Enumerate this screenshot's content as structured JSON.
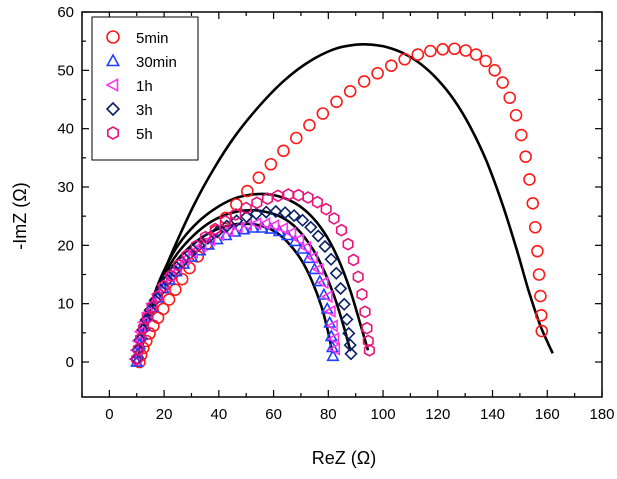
{
  "chart_data": {
    "type": "scatter",
    "title": "",
    "xlabel": "ReZ (Ω)",
    "ylabel": "-ImZ (Ω)",
    "xlim": [
      -10,
      180
    ],
    "ylim": [
      -6,
      60
    ],
    "x_ticks": [
      0,
      20,
      40,
      60,
      80,
      100,
      120,
      140,
      160,
      180
    ],
    "y_ticks": [
      0,
      10,
      20,
      30,
      40,
      50,
      60
    ],
    "grid": false,
    "legend_position": "top-left",
    "fit_color": "#000000",
    "series": [
      {
        "name": "5min",
        "marker": "circle",
        "color": "#ff1a1a",
        "x": [
          11.0,
          11.6,
          12.4,
          13.5,
          14.7,
          16.1,
          17.8,
          19.7,
          21.8,
          24.1,
          26.6,
          29.3,
          32.3,
          35.5,
          38.9,
          42.5,
          46.4,
          50.4,
          54.6,
          59.0,
          63.6,
          68.3,
          73.1,
          78.0,
          83.0,
          88.0,
          93.1,
          98.0,
          103.0,
          107.9,
          112.7,
          117.3,
          121.8,
          126.1,
          130.2,
          134.0,
          137.5,
          140.8,
          143.7,
          146.3,
          148.6,
          150.5,
          152.1,
          153.5,
          154.7,
          155.6,
          156.4,
          157.0,
          157.5,
          157.8,
          158.0
        ],
        "y": [
          0.0,
          1.2,
          2.4,
          3.6,
          4.9,
          6.2,
          7.6,
          9.1,
          10.7,
          12.4,
          14.2,
          16.1,
          18.1,
          20.2,
          22.4,
          24.7,
          27.0,
          29.3,
          31.6,
          33.9,
          36.2,
          38.4,
          40.6,
          42.6,
          44.6,
          46.4,
          48.1,
          49.5,
          50.8,
          51.9,
          52.7,
          53.3,
          53.6,
          53.7,
          53.4,
          52.7,
          51.6,
          50.0,
          47.9,
          45.3,
          42.3,
          38.9,
          35.2,
          31.3,
          27.2,
          23.1,
          19.0,
          15.0,
          11.3,
          8.0,
          5.3
        ]
      },
      {
        "name": "30min",
        "marker": "triangle",
        "color": "#1f3fff",
        "x": [
          10.0,
          10.4,
          11.0,
          11.8,
          12.9,
          14.2,
          15.8,
          17.6,
          19.7,
          22.0,
          24.5,
          27.2,
          30.1,
          33.1,
          36.2,
          39.4,
          42.6,
          45.9,
          49.2,
          52.5,
          55.8,
          59.0,
          62.1,
          65.1,
          67.9,
          70.5,
          72.9,
          75.0,
          76.9,
          78.4,
          79.6,
          80.5,
          81.1,
          81.5,
          81.7
        ],
        "y": [
          0.0,
          1.5,
          3.0,
          4.6,
          6.2,
          7.8,
          9.4,
          11.0,
          12.6,
          14.1,
          15.5,
          16.8,
          18.0,
          19.1,
          20.1,
          21.0,
          21.7,
          22.3,
          22.7,
          23.0,
          23.0,
          22.8,
          22.4,
          21.7,
          20.7,
          19.4,
          17.8,
          15.9,
          13.8,
          11.5,
          9.1,
          6.7,
          4.4,
          2.5,
          1.0
        ]
      },
      {
        "name": "1h",
        "marker": "triangle-left",
        "color": "#ff33ee",
        "x": [
          9.5,
          10.0,
          10.6,
          11.5,
          12.6,
          14.0,
          15.7,
          17.6,
          19.8,
          22.2,
          24.8,
          27.6,
          30.6,
          33.7,
          36.9,
          40.2,
          43.5,
          46.9,
          50.3,
          53.7,
          57.0,
          60.3,
          63.5,
          66.5,
          69.4,
          72.0,
          74.4,
          76.5,
          78.3,
          79.8,
          80.9,
          81.7,
          82.2,
          82.5
        ],
        "y": [
          0.5,
          2.0,
          3.6,
          5.2,
          6.8,
          8.4,
          10.0,
          11.6,
          13.2,
          14.8,
          16.2,
          17.6,
          18.8,
          19.9,
          20.9,
          21.8,
          22.5,
          23.1,
          23.5,
          23.7,
          23.7,
          23.4,
          22.9,
          22.1,
          21.0,
          19.6,
          17.9,
          15.9,
          13.6,
          11.2,
          8.7,
          6.2,
          4.0,
          2.2
        ]
      },
      {
        "name": "3h",
        "marker": "diamond",
        "color": "#0b1f66",
        "x": [
          10.0,
          10.5,
          11.2,
          12.2,
          13.4,
          14.9,
          16.7,
          18.8,
          21.1,
          23.7,
          26.5,
          29.5,
          32.7,
          36.0,
          39.4,
          42.9,
          46.5,
          50.1,
          53.7,
          57.3,
          60.8,
          64.2,
          67.5,
          70.6,
          73.6,
          76.3,
          78.8,
          81.0,
          82.9,
          84.5,
          85.8,
          86.8,
          87.5,
          88.0,
          88.3
        ],
        "y": [
          0.5,
          2.1,
          3.8,
          5.5,
          7.2,
          8.9,
          10.6,
          12.3,
          14.0,
          15.6,
          17.2,
          18.6,
          20.0,
          21.2,
          22.3,
          23.3,
          24.2,
          24.9,
          25.4,
          25.7,
          25.8,
          25.6,
          25.1,
          24.3,
          23.1,
          21.6,
          19.8,
          17.6,
          15.2,
          12.6,
          9.9,
          7.3,
          4.9,
          2.9,
          1.4
        ]
      },
      {
        "name": "5h",
        "marker": "hexagon",
        "color": "#e8147a",
        "x": [
          10.0,
          10.6,
          11.4,
          12.5,
          13.9,
          15.6,
          17.6,
          19.9,
          22.5,
          25.3,
          28.4,
          31.7,
          35.1,
          38.7,
          42.4,
          46.2,
          50.0,
          53.9,
          57.8,
          61.6,
          65.4,
          69.1,
          72.6,
          76.0,
          79.2,
          82.1,
          84.8,
          87.2,
          89.2,
          90.9,
          92.3,
          93.4,
          94.1,
          94.6,
          95.0
        ],
        "y": [
          0.5,
          2.2,
          4.0,
          5.8,
          7.6,
          9.4,
          11.2,
          13.0,
          14.8,
          16.6,
          18.3,
          19.9,
          21.4,
          22.8,
          24.1,
          25.3,
          26.4,
          27.3,
          28.0,
          28.5,
          28.7,
          28.6,
          28.2,
          27.4,
          26.2,
          24.6,
          22.6,
          20.2,
          17.5,
          14.6,
          11.6,
          8.6,
          5.8,
          3.6,
          2.0
        ]
      }
    ],
    "fits": [
      {
        "x": [
          11.0,
          13.0,
          16.0,
          20.0,
          25.0,
          31.0,
          38.0,
          46.0,
          55.0,
          64.0,
          73.0,
          82.0,
          90.0,
          96.0,
          102.0,
          108.0,
          114.0,
          120.0,
          126.0,
          132.0,
          138.0,
          144.0,
          149.0,
          153.0,
          157.0,
          160.0,
          162.0
        ],
        "y": [
          0.0,
          5.0,
          10.0,
          15.5,
          21.0,
          27.0,
          33.0,
          38.8,
          44.0,
          48.3,
          51.5,
          53.6,
          54.4,
          54.4,
          53.9,
          52.8,
          51.0,
          48.4,
          44.9,
          40.2,
          34.2,
          26.5,
          19.0,
          12.5,
          6.8,
          3.5,
          1.5
        ]
      },
      {
        "x": [
          10.5,
          12.5,
          15.5,
          19.5,
          24.5,
          30.0,
          36.0,
          42.0,
          48.0,
          54.0,
          60.0,
          65.0,
          70.0,
          74.0,
          77.5,
          80.0,
          81.5
        ],
        "y": [
          0.5,
          5.5,
          10.0,
          14.0,
          17.3,
          20.0,
          22.0,
          23.2,
          23.7,
          23.5,
          22.5,
          20.6,
          17.6,
          13.9,
          9.5,
          5.0,
          1.5
        ]
      },
      {
        "x": [
          11.0,
          13.0,
          16.0,
          20.0,
          25.0,
          31.0,
          37.0,
          43.5,
          50.0,
          56.5,
          63.0,
          68.5,
          74.0,
          78.5,
          82.5,
          86.0,
          88.0
        ],
        "y": [
          1.0,
          6.0,
          10.7,
          14.9,
          18.7,
          21.8,
          24.0,
          25.4,
          26.0,
          25.8,
          24.8,
          22.9,
          19.6,
          15.6,
          10.8,
          5.5,
          2.0
        ]
      },
      {
        "x": [
          11.5,
          13.5,
          16.5,
          20.5,
          25.5,
          31.5,
          38.0,
          45.0,
          52.0,
          59.0,
          66.0,
          72.5,
          78.5,
          83.5,
          88.0,
          92.0,
          94.5
        ],
        "y": [
          1.0,
          6.5,
          11.7,
          16.2,
          20.3,
          23.6,
          26.1,
          27.9,
          28.7,
          28.7,
          27.7,
          25.6,
          22.2,
          17.8,
          12.3,
          6.0,
          2.0
        ]
      }
    ]
  }
}
